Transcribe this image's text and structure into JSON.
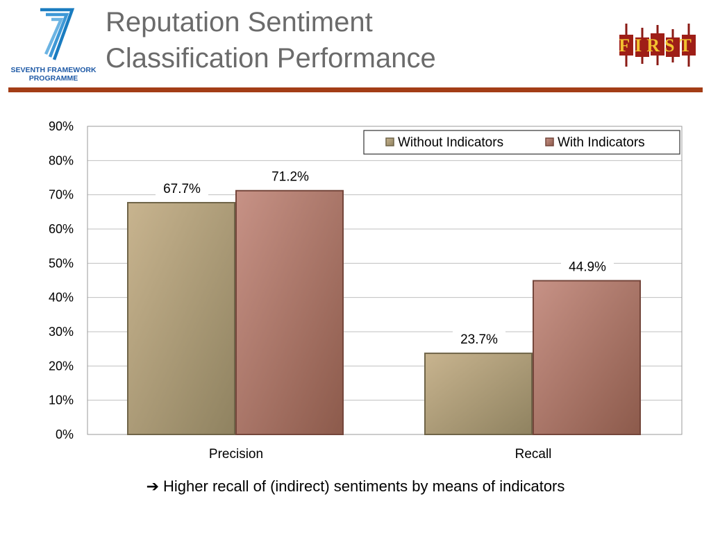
{
  "slide": {
    "title_lines": [
      "Reputation Sentiment",
      "Classification Performance"
    ],
    "caption_arrow": "➔",
    "caption": "Higher recall of (indirect) sentiments by means of indicators"
  },
  "logos": {
    "fp7_line1": "SEVENTH FRAMEWORK",
    "fp7_line2": "PROGRAMME",
    "first_text": "FIRST"
  },
  "colors": {
    "title_rule": "#a33d16",
    "without_indicators": "#a8996f",
    "with_indicators": "#a86b5e",
    "gridline": "#bfbfbf"
  },
  "chart_data": {
    "type": "bar",
    "categories": [
      "Precision",
      "Recall"
    ],
    "series": [
      {
        "name": "Without Indicators",
        "values": [
          67.7,
          23.7
        ],
        "labels": [
          "67.7%",
          "23.7%"
        ]
      },
      {
        "name": "With Indicators",
        "values": [
          71.2,
          44.9
        ],
        "labels": [
          "71.2%",
          "44.9%"
        ]
      }
    ],
    "ylim": [
      0,
      90
    ],
    "yticks": [
      "0%",
      "10%",
      "20%",
      "30%",
      "40%",
      "50%",
      "60%",
      "70%",
      "80%",
      "90%"
    ],
    "grid": true,
    "legend": "top-right"
  }
}
